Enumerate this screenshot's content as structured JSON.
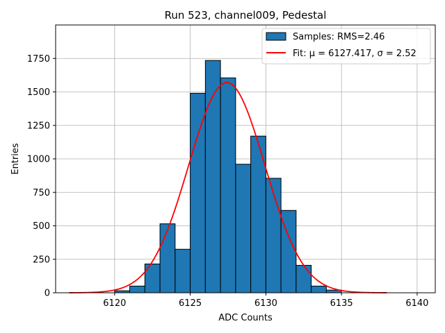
{
  "chart_data": {
    "type": "bar",
    "title": "Run 523, channel009, Pedestal",
    "xlabel": "ADC Counts",
    "ylabel": "Entries",
    "xlim": [
      6116.1,
      6141.2
    ],
    "ylim": [
      0,
      2000
    ],
    "xticks": [
      6120,
      6125,
      6130,
      6135,
      6140
    ],
    "yticks": [
      0,
      250,
      500,
      750,
      1000,
      1250,
      1500,
      1750
    ],
    "grid": true,
    "legend_position": "top-right",
    "histogram": {
      "name": "Samples: RMS=2.46",
      "bin_edges": [
        6120,
        6121,
        6122,
        6123,
        6124,
        6125,
        6126,
        6127,
        6128,
        6129,
        6130,
        6131,
        6132,
        6133,
        6134,
        6135
      ],
      "counts": [
        15,
        50,
        215,
        515,
        325,
        1490,
        1735,
        1605,
        960,
        1170,
        855,
        615,
        205,
        50,
        20
      ],
      "color": "#1f77b4",
      "edge_color": "#000000"
    },
    "fit": {
      "name": "Fit: μ = 6127.417, σ = 2.52",
      "mu": 6127.417,
      "sigma": 2.52,
      "amplitude": 1570,
      "x_range": [
        6117,
        6138
      ],
      "color": "#ff0000"
    }
  }
}
